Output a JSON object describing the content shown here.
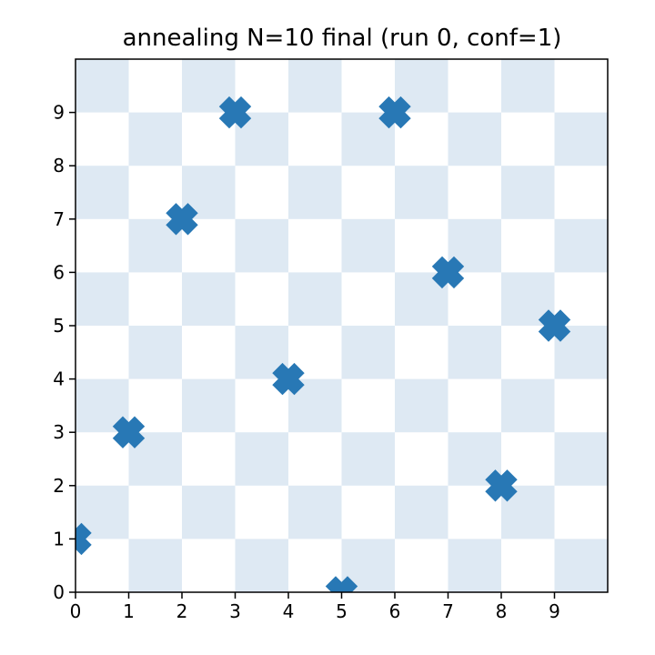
{
  "chart_data": {
    "type": "scatter",
    "title": "annealing N=10 final (run 0, conf=1)",
    "xlabel": "",
    "ylabel": "",
    "xlim": [
      0,
      10
    ],
    "ylim": [
      0,
      10
    ],
    "xticks": [
      "0",
      "1",
      "2",
      "3",
      "4",
      "5",
      "6",
      "7",
      "8",
      "9"
    ],
    "yticks": [
      "0",
      "1",
      "2",
      "3",
      "4",
      "5",
      "6",
      "7",
      "8",
      "9"
    ],
    "grid": false,
    "background": "checkerboard",
    "checker_color": "#dee9f3",
    "marker": "X",
    "marker_color": "#2878b5",
    "points": [
      {
        "x": 0,
        "y": 1
      },
      {
        "x": 1,
        "y": 3
      },
      {
        "x": 2,
        "y": 7
      },
      {
        "x": 3,
        "y": 9
      },
      {
        "x": 4,
        "y": 4
      },
      {
        "x": 5,
        "y": 0
      },
      {
        "x": 6,
        "y": 9
      },
      {
        "x": 7,
        "y": 6
      },
      {
        "x": 8,
        "y": 2
      },
      {
        "x": 9,
        "y": 5
      }
    ]
  }
}
